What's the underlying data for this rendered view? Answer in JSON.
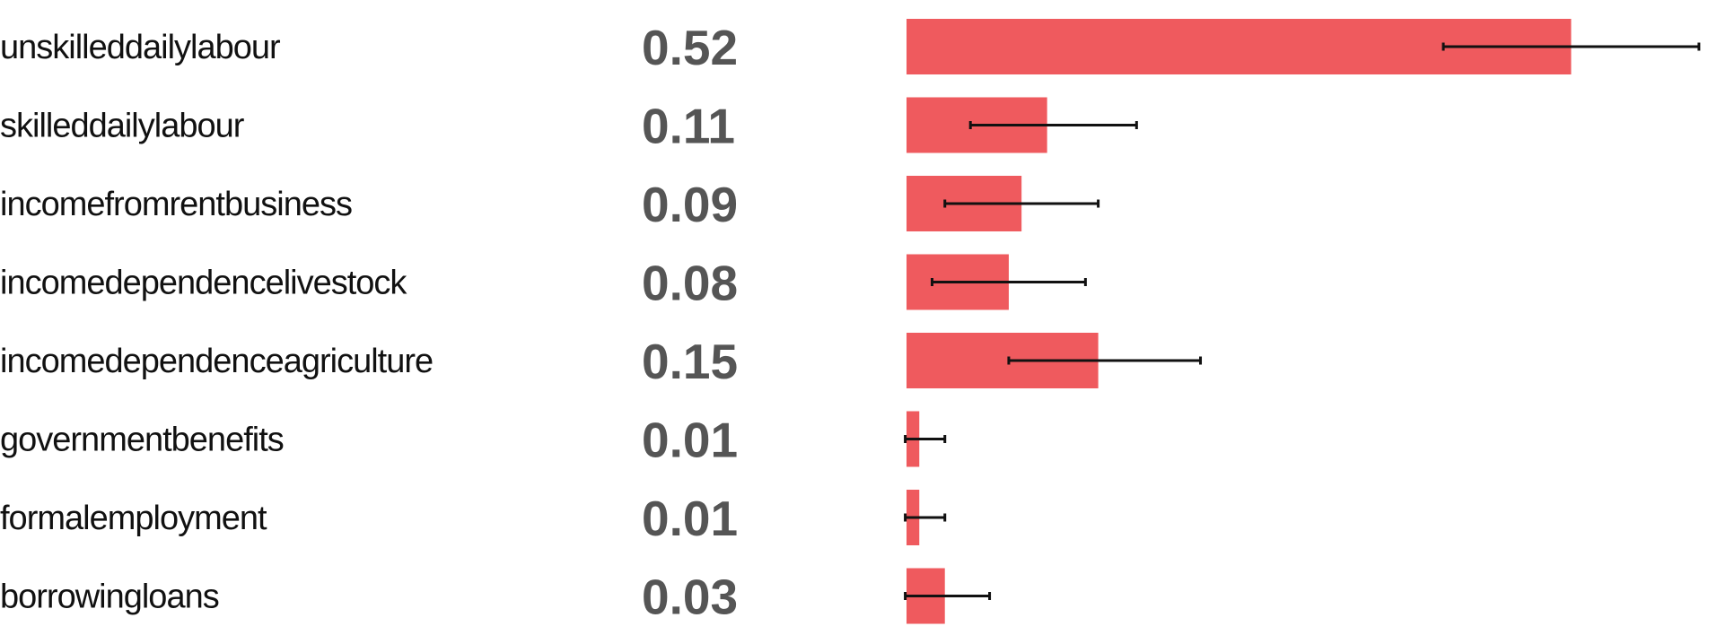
{
  "chart_data": {
    "type": "bar",
    "orientation": "horizontal",
    "categories": [
      "unskilleddailylabour",
      "skilleddailylabour",
      "incomefromrentbusiness",
      "incomedependencelivestock",
      "incomedependenceagriculture",
      "governmentbenefits",
      "formalemployment",
      "borrowingloans"
    ],
    "values": [
      0.52,
      0.11,
      0.09,
      0.08,
      0.15,
      0.01,
      0.01,
      0.03
    ],
    "value_labels": [
      "0.52",
      "0.11",
      "0.09",
      "0.08",
      "0.15",
      "0.01",
      "0.01",
      "0.03"
    ],
    "error_low": [
      0.42,
      0.05,
      0.03,
      0.02,
      0.08,
      -0.001,
      -0.001,
      -0.001
    ],
    "error_high": [
      0.62,
      0.18,
      0.15,
      0.14,
      0.23,
      0.03,
      0.03,
      0.065
    ],
    "xlim": [
      0,
      0.65
    ],
    "grid": false,
    "legend": "none",
    "colors": {
      "bar": "#EF5A5E",
      "error_bar": "#111111",
      "category_text": "#111111",
      "value_text": "#555555"
    }
  }
}
